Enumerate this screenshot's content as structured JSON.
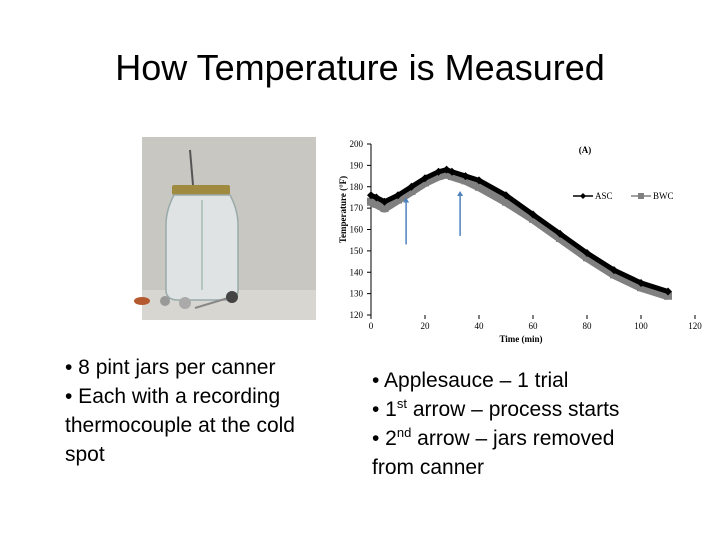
{
  "title": "How Temperature is Measured",
  "left_text": [
    "• 8 pint jars  per canner",
    "• Each with a recording",
    "thermocouple at the cold",
    "spot"
  ],
  "right_text": [
    "• Applesauce – 1 trial",
    [
      "• 1",
      "st",
      " arrow – process starts"
    ],
    [
      "• 2",
      "nd",
      " arrow – jars removed"
    ],
    "from canner"
  ],
  "chart_data": {
    "type": "line",
    "title": "(A)",
    "xlabel": "Time (min)",
    "ylabel": "Temperature (°F)",
    "x": [
      0,
      2,
      5,
      10,
      15,
      20,
      25,
      28,
      30,
      35,
      40,
      50,
      60,
      70,
      80,
      90,
      100,
      110
    ],
    "series": [
      {
        "name": "ASC",
        "color": "#000000",
        "values": [
          176,
          175,
          173,
          176,
          180,
          184,
          187,
          188,
          187,
          185,
          183,
          176,
          167,
          158,
          149,
          141,
          135,
          131
        ]
      },
      {
        "name": "BWC",
        "color": "#808080",
        "values": [
          173,
          172,
          170,
          174,
          178,
          182,
          185,
          186,
          185,
          183,
          180,
          173,
          165,
          156,
          147,
          139,
          133,
          129
        ]
      }
    ],
    "arrows": [
      {
        "x": 13,
        "y": [
          153,
          175
        ]
      },
      {
        "x": 33,
        "y": [
          157,
          178
        ]
      }
    ],
    "xlim": [
      0,
      120
    ],
    "xticks": [
      0,
      20,
      40,
      60,
      80,
      100,
      120
    ],
    "ylim": [
      120,
      200
    ],
    "yticks": [
      120,
      130,
      140,
      150,
      160,
      170,
      180,
      190,
      200
    ],
    "grid": false,
    "legend": "top-right"
  }
}
